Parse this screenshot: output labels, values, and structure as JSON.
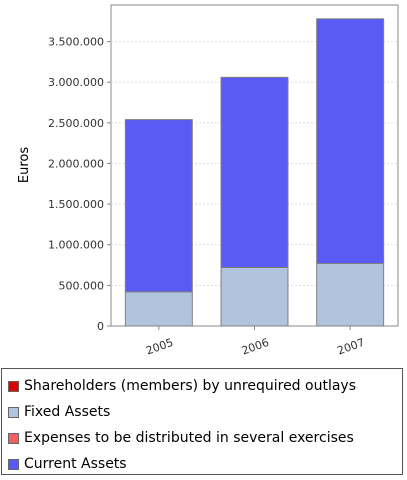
{
  "chart_data": {
    "type": "bar",
    "stacked": true,
    "title": "",
    "xlabel": "",
    "ylabel": "Euros",
    "ylim": [
      0,
      3950000
    ],
    "yticks": [
      0,
      500000,
      1000000,
      1500000,
      2000000,
      2500000,
      3000000,
      3500000
    ],
    "ytick_labels": [
      "0",
      "500.000",
      "1.000.000",
      "1.500.000",
      "2.000.000",
      "2.500.000",
      "3.000.000",
      "3.500.000"
    ],
    "categories": [
      "2005",
      "2006",
      "2007"
    ],
    "grid": true,
    "legend_position": "bottom",
    "series": [
      {
        "name": "Shareholders (members) by unrequired outlays",
        "color": "#e00000",
        "values": [
          0,
          0,
          0
        ]
      },
      {
        "name": "Fixed Assets",
        "color": "#b0c4de",
        "values": [
          420000,
          720000,
          770000
        ]
      },
      {
        "name": "Expenses to be distributed in several exercises",
        "color": "#f06060",
        "values": [
          0,
          0,
          0
        ]
      },
      {
        "name": "Current Assets",
        "color": "#5a5af5",
        "values": [
          2120000,
          2340000,
          3010000
        ]
      }
    ]
  }
}
